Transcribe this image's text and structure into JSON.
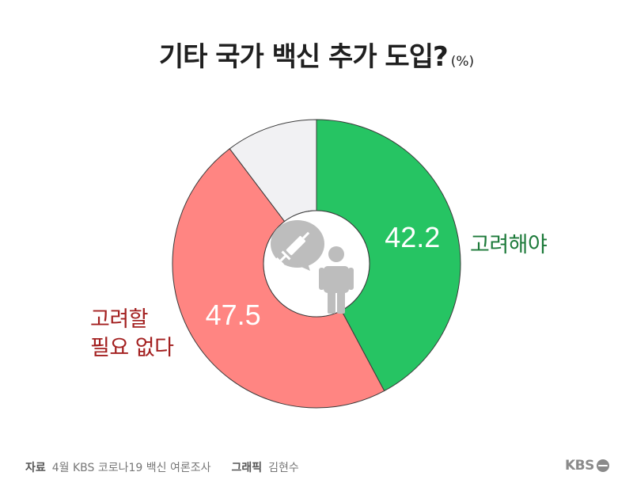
{
  "title": "기타 국가 백신 추가 도입?",
  "unit": "(%)",
  "chart_data": {
    "type": "pie",
    "style": "donut",
    "title": "기타 국가 백신 추가 도입?",
    "unit": "(%)",
    "slices": [
      {
        "label": "고려해야",
        "value": 42.2,
        "display": "42.2",
        "color": "#26c463"
      },
      {
        "label": "고려할 필요 없다",
        "value": 47.5,
        "display": "47.5",
        "color": "#ff8582"
      },
      {
        "label": "",
        "value": 10.3,
        "display": "",
        "color": "#f1f1f3"
      }
    ],
    "center_icons": [
      "syringe-icon",
      "person-icon"
    ]
  },
  "labels": {
    "green": "고려해야",
    "red_line1": "고려할",
    "red_line2": "필요 없다"
  },
  "footer": {
    "source_label": "자료",
    "source_text": "4월 KBS 코로나19 백신 여론조사",
    "graphic_label": "그래픽",
    "graphic_text": "김현수"
  },
  "logo": {
    "text": "KBS"
  }
}
